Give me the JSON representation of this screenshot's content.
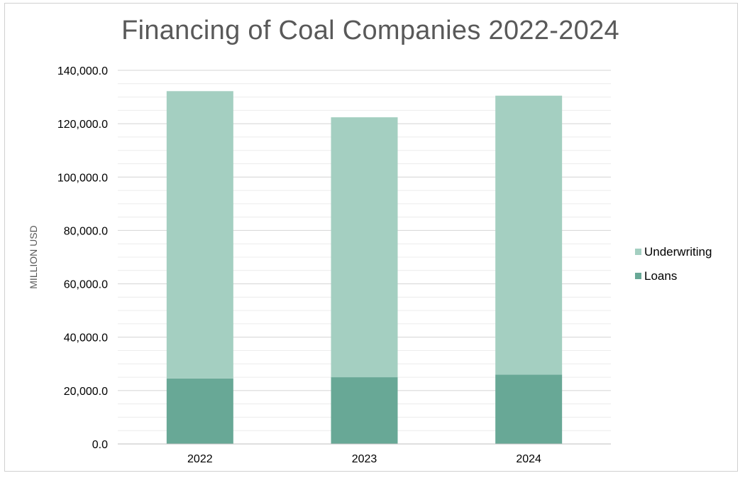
{
  "chart_data": {
    "type": "bar",
    "stacked": true,
    "title": "Financing of Coal Companies 2022-2024",
    "xlabel": "",
    "ylabel": "MILLION USD",
    "categories": [
      "2022",
      "2023",
      "2024"
    ],
    "series": [
      {
        "name": "Loans",
        "values": [
          24500,
          25000,
          26000
        ],
        "color": "#68a896"
      },
      {
        "name": "Underwriting",
        "values": [
          107700,
          97400,
          104500
        ],
        "color": "#a4cfc1"
      }
    ],
    "ylim": [
      0,
      140000
    ],
    "yticks": [
      0,
      20000,
      40000,
      60000,
      80000,
      100000,
      120000,
      140000
    ],
    "ytick_labels": [
      "0.0",
      "20,000.0",
      "40,000.0",
      "60,000.0",
      "80,000.0",
      "100,000.0",
      "120,000.0",
      "140,000.0"
    ],
    "grid": "major and minor horizontal gridlines",
    "legend": {
      "placement": "right",
      "entries": [
        "Underwriting",
        "Loans"
      ]
    }
  }
}
